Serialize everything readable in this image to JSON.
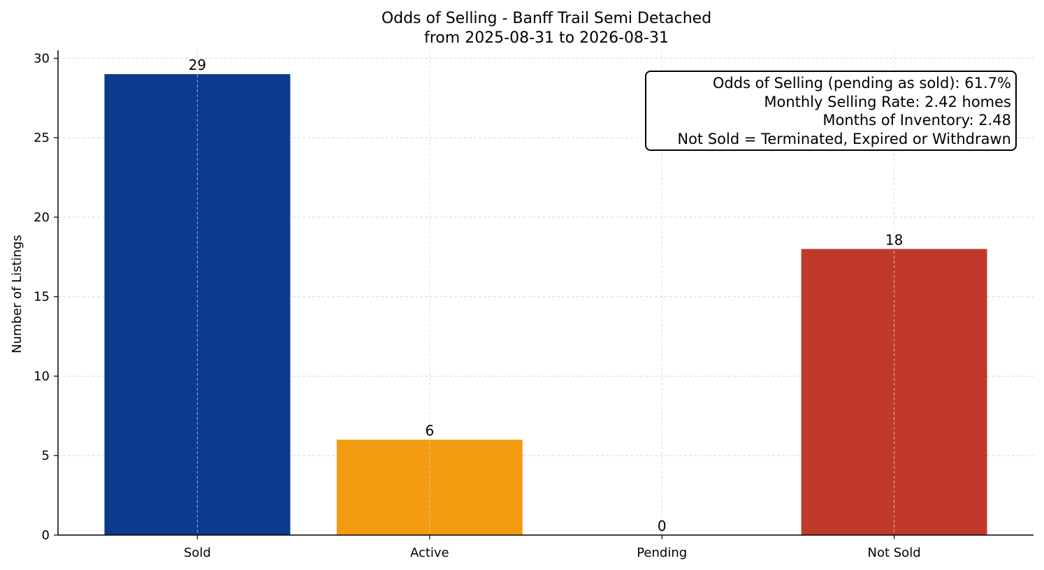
{
  "chart_data": {
    "type": "bar",
    "title": "Odds of Selling - Banff Trail Semi Detached",
    "subtitle": "from 2025-08-31 to 2026-08-31",
    "xlabel": "",
    "ylabel": "Number of Listings",
    "categories": [
      "Sold",
      "Active",
      "Pending",
      "Not Sold"
    ],
    "values": [
      29,
      6,
      0,
      18
    ],
    "value_labels": [
      "29",
      "6",
      "0",
      "18"
    ],
    "colors": [
      "#0b3a8e",
      "#f39c12",
      "#f39c12",
      "#c0392b"
    ],
    "ylim": [
      0,
      30.5
    ],
    "yticks": [
      0,
      5,
      10,
      15,
      20,
      25,
      30
    ],
    "grid": true,
    "annotation": [
      "Odds of Selling (pending as sold): 61.7%",
      "Monthly Selling Rate: 2.42 homes",
      "Months of Inventory: 2.48",
      "Not Sold = Terminated, Expired or Withdrawn"
    ],
    "annotation_placement": "top-right"
  }
}
